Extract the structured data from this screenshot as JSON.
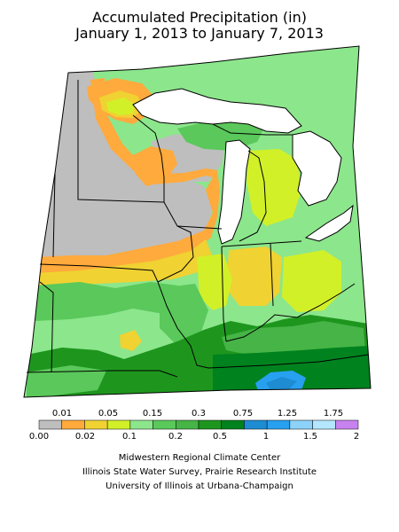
{
  "title": {
    "line1": "Accumulated Precipitation (in)",
    "line2": "January 1, 2013 to January 7, 2013"
  },
  "legend": {
    "top_labels": [
      "0.01",
      "0.05",
      "0.15",
      "0.3",
      "0.75",
      "1.25",
      "1.75"
    ],
    "bottom_labels": [
      "0.00",
      "0.02",
      "0.1",
      "0.2",
      "0.5",
      "1",
      "1.5",
      "2"
    ],
    "colors": [
      "#bebebe",
      "#ffaa3c",
      "#f0d232",
      "#d2f028",
      "#8ce68c",
      "#5ac85a",
      "#46b446",
      "#1e961e",
      "#00821e",
      "#1e8cd2",
      "#28a0f0",
      "#8cd2fa",
      "#b4e6ff",
      "#c882f0"
    ]
  },
  "credits": [
    "Midwestern Regional Climate Center",
    "Illinois State Water Survey, Prairie Research Institute",
    "University of Illinois at Urbana-Champaign"
  ],
  "map_colors": {
    "none": "#bebebe",
    "trace": "#ffaa3c",
    "low": "#f0d232",
    "light": "#d2f028",
    "moderate": "#8ce68c",
    "medium": "#5ac85a",
    "heavy": "#1e961e",
    "very_heavy": "#00821e",
    "blue": "#28a0f0",
    "water": "#ffffff"
  }
}
